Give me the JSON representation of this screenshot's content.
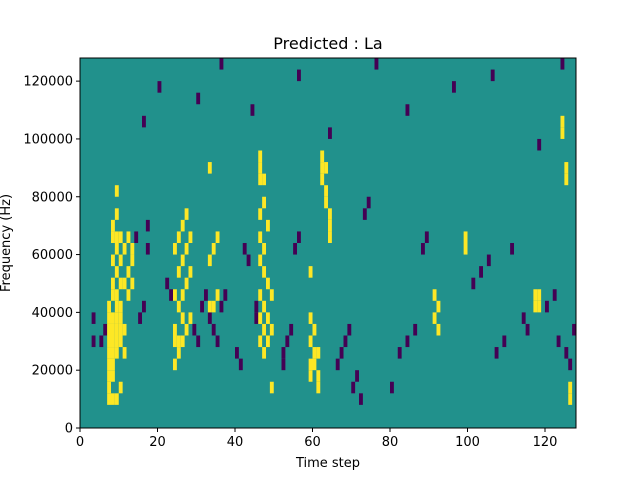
{
  "chart_data": {
    "type": "heatmap",
    "title": "Predicted : La",
    "xlabel": "Time step",
    "ylabel": "Frequency (Hz)",
    "xlim": [
      0,
      128
    ],
    "ylim": [
      0,
      128000
    ],
    "x_ticks": [
      0,
      20,
      40,
      60,
      80,
      100,
      120
    ],
    "y_ticks": [
      0,
      20000,
      40000,
      60000,
      80000,
      100000,
      120000
    ],
    "x_tick_labels": [
      "0",
      "20",
      "40",
      "60",
      "80",
      "100",
      "120"
    ],
    "y_tick_labels": [
      "0",
      "20000",
      "40000",
      "60000",
      "80000",
      "100000",
      "120000"
    ],
    "grid": false,
    "colormap": [
      "#440154",
      "#21918c",
      "#fde725"
    ],
    "levels": {
      "low": -1,
      "mid": 0,
      "high": 1
    },
    "background_value": 0,
    "cell_height_hz": 4000,
    "cells_high": [
      [
        7,
        8000
      ],
      [
        7,
        12000
      ],
      [
        7,
        16000
      ],
      [
        7,
        20000
      ],
      [
        7,
        24000
      ],
      [
        7,
        28000
      ],
      [
        7,
        32000
      ],
      [
        7,
        36000
      ],
      [
        7,
        40000
      ],
      [
        8,
        8000
      ],
      [
        8,
        16000
      ],
      [
        8,
        20000
      ],
      [
        8,
        24000
      ],
      [
        8,
        28000
      ],
      [
        8,
        32000
      ],
      [
        8,
        36000
      ],
      [
        8,
        44000
      ],
      [
        8,
        48000
      ],
      [
        8,
        56000
      ],
      [
        8,
        64000
      ],
      [
        8,
        68000
      ],
      [
        9,
        8000
      ],
      [
        9,
        24000
      ],
      [
        9,
        28000
      ],
      [
        9,
        32000
      ],
      [
        9,
        36000
      ],
      [
        9,
        40000
      ],
      [
        9,
        44000
      ],
      [
        9,
        52000
      ],
      [
        9,
        60000
      ],
      [
        9,
        64000
      ],
      [
        9,
        72000
      ],
      [
        9,
        80000
      ],
      [
        10,
        12000
      ],
      [
        10,
        28000
      ],
      [
        10,
        32000
      ],
      [
        10,
        36000
      ],
      [
        10,
        40000
      ],
      [
        10,
        48000
      ],
      [
        10,
        56000
      ],
      [
        10,
        64000
      ],
      [
        11,
        24000
      ],
      [
        11,
        32000
      ],
      [
        11,
        48000
      ],
      [
        11,
        60000
      ],
      [
        12,
        44000
      ],
      [
        12,
        52000
      ],
      [
        12,
        64000
      ],
      [
        13,
        48000
      ],
      [
        13,
        56000
      ],
      [
        13,
        60000
      ],
      [
        24,
        20000
      ],
      [
        24,
        28000
      ],
      [
        24,
        32000
      ],
      [
        24,
        44000
      ],
      [
        24,
        60000
      ],
      [
        25,
        24000
      ],
      [
        25,
        28000
      ],
      [
        25,
        40000
      ],
      [
        25,
        52000
      ],
      [
        25,
        64000
      ],
      [
        26,
        28000
      ],
      [
        26,
        36000
      ],
      [
        26,
        44000
      ],
      [
        26,
        56000
      ],
      [
        26,
        68000
      ],
      [
        27,
        32000
      ],
      [
        27,
        48000
      ],
      [
        27,
        60000
      ],
      [
        27,
        72000
      ],
      [
        28,
        36000
      ],
      [
        28,
        52000
      ],
      [
        28,
        64000
      ],
      [
        33,
        40000
      ],
      [
        33,
        56000
      ],
      [
        33,
        88000
      ],
      [
        34,
        40000
      ],
      [
        34,
        60000
      ],
      [
        35,
        44000
      ],
      [
        35,
        64000
      ],
      [
        46,
        28000
      ],
      [
        46,
        36000
      ],
      [
        46,
        44000
      ],
      [
        46,
        56000
      ],
      [
        46,
        64000
      ],
      [
        46,
        72000
      ],
      [
        46,
        84000
      ],
      [
        46,
        88000
      ],
      [
        46,
        92000
      ],
      [
        47,
        24000
      ],
      [
        47,
        32000
      ],
      [
        47,
        40000
      ],
      [
        47,
        52000
      ],
      [
        47,
        60000
      ],
      [
        47,
        76000
      ],
      [
        47,
        84000
      ],
      [
        48,
        28000
      ],
      [
        48,
        36000
      ],
      [
        48,
        48000
      ],
      [
        48,
        68000
      ],
      [
        49,
        12000
      ],
      [
        49,
        32000
      ],
      [
        49,
        44000
      ],
      [
        59,
        16000
      ],
      [
        59,
        20000
      ],
      [
        59,
        28000
      ],
      [
        59,
        36000
      ],
      [
        59,
        52000
      ],
      [
        60,
        20000
      ],
      [
        60,
        24000
      ],
      [
        60,
        32000
      ],
      [
        61,
        12000
      ],
      [
        61,
        16000
      ],
      [
        61,
        24000
      ],
      [
        62,
        84000
      ],
      [
        62,
        88000
      ],
      [
        62,
        92000
      ],
      [
        63,
        76000
      ],
      [
        63,
        80000
      ],
      [
        63,
        88000
      ],
      [
        64,
        64000
      ],
      [
        64,
        68000
      ],
      [
        64,
        72000
      ],
      [
        91,
        36000
      ],
      [
        91,
        44000
      ],
      [
        92,
        32000
      ],
      [
        92,
        40000
      ],
      [
        99,
        60000
      ],
      [
        99,
        64000
      ],
      [
        117,
        40000
      ],
      [
        117,
        44000
      ],
      [
        118,
        40000
      ],
      [
        118,
        44000
      ],
      [
        124,
        100000
      ],
      [
        124,
        104000
      ],
      [
        125,
        84000
      ],
      [
        125,
        88000
      ],
      [
        126,
        8000
      ],
      [
        126,
        12000
      ]
    ],
    "cells_low": [
      [
        3,
        28000
      ],
      [
        3,
        36000
      ],
      [
        5,
        28000
      ],
      [
        6,
        32000
      ],
      [
        14,
        64000
      ],
      [
        15,
        36000
      ],
      [
        16,
        40000
      ],
      [
        17,
        60000
      ],
      [
        17,
        68000
      ],
      [
        22,
        48000
      ],
      [
        23,
        44000
      ],
      [
        29,
        32000
      ],
      [
        30,
        28000
      ],
      [
        31,
        40000
      ],
      [
        32,
        44000
      ],
      [
        33,
        36000
      ],
      [
        34,
        32000
      ],
      [
        35,
        28000
      ],
      [
        36,
        40000
      ],
      [
        37,
        44000
      ],
      [
        40,
        24000
      ],
      [
        41,
        20000
      ],
      [
        42,
        60000
      ],
      [
        43,
        56000
      ],
      [
        45,
        36000
      ],
      [
        45,
        40000
      ],
      [
        52,
        20000
      ],
      [
        52,
        24000
      ],
      [
        53,
        28000
      ],
      [
        54,
        32000
      ],
      [
        55,
        60000
      ],
      [
        56,
        64000
      ],
      [
        66,
        20000
      ],
      [
        67,
        24000
      ],
      [
        68,
        28000
      ],
      [
        69,
        32000
      ],
      [
        70,
        12000
      ],
      [
        71,
        16000
      ],
      [
        72,
        8000
      ],
      [
        73,
        72000
      ],
      [
        74,
        76000
      ],
      [
        80,
        12000
      ],
      [
        82,
        24000
      ],
      [
        84,
        28000
      ],
      [
        86,
        32000
      ],
      [
        88,
        60000
      ],
      [
        89,
        64000
      ],
      [
        101,
        48000
      ],
      [
        103,
        52000
      ],
      [
        105,
        56000
      ],
      [
        107,
        24000
      ],
      [
        109,
        28000
      ],
      [
        111,
        60000
      ],
      [
        114,
        36000
      ],
      [
        115,
        32000
      ],
      [
        120,
        40000
      ],
      [
        122,
        44000
      ],
      [
        123,
        28000
      ],
      [
        125,
        24000
      ],
      [
        126,
        20000
      ],
      [
        127,
        32000
      ],
      [
        16,
        104000
      ],
      [
        20,
        116000
      ],
      [
        30,
        112000
      ],
      [
        36,
        124000
      ],
      [
        44,
        108000
      ],
      [
        56,
        120000
      ],
      [
        64,
        100000
      ],
      [
        76,
        124000
      ],
      [
        84,
        108000
      ],
      [
        96,
        116000
      ],
      [
        106,
        120000
      ],
      [
        118,
        96000
      ],
      [
        124,
        124000
      ]
    ]
  }
}
